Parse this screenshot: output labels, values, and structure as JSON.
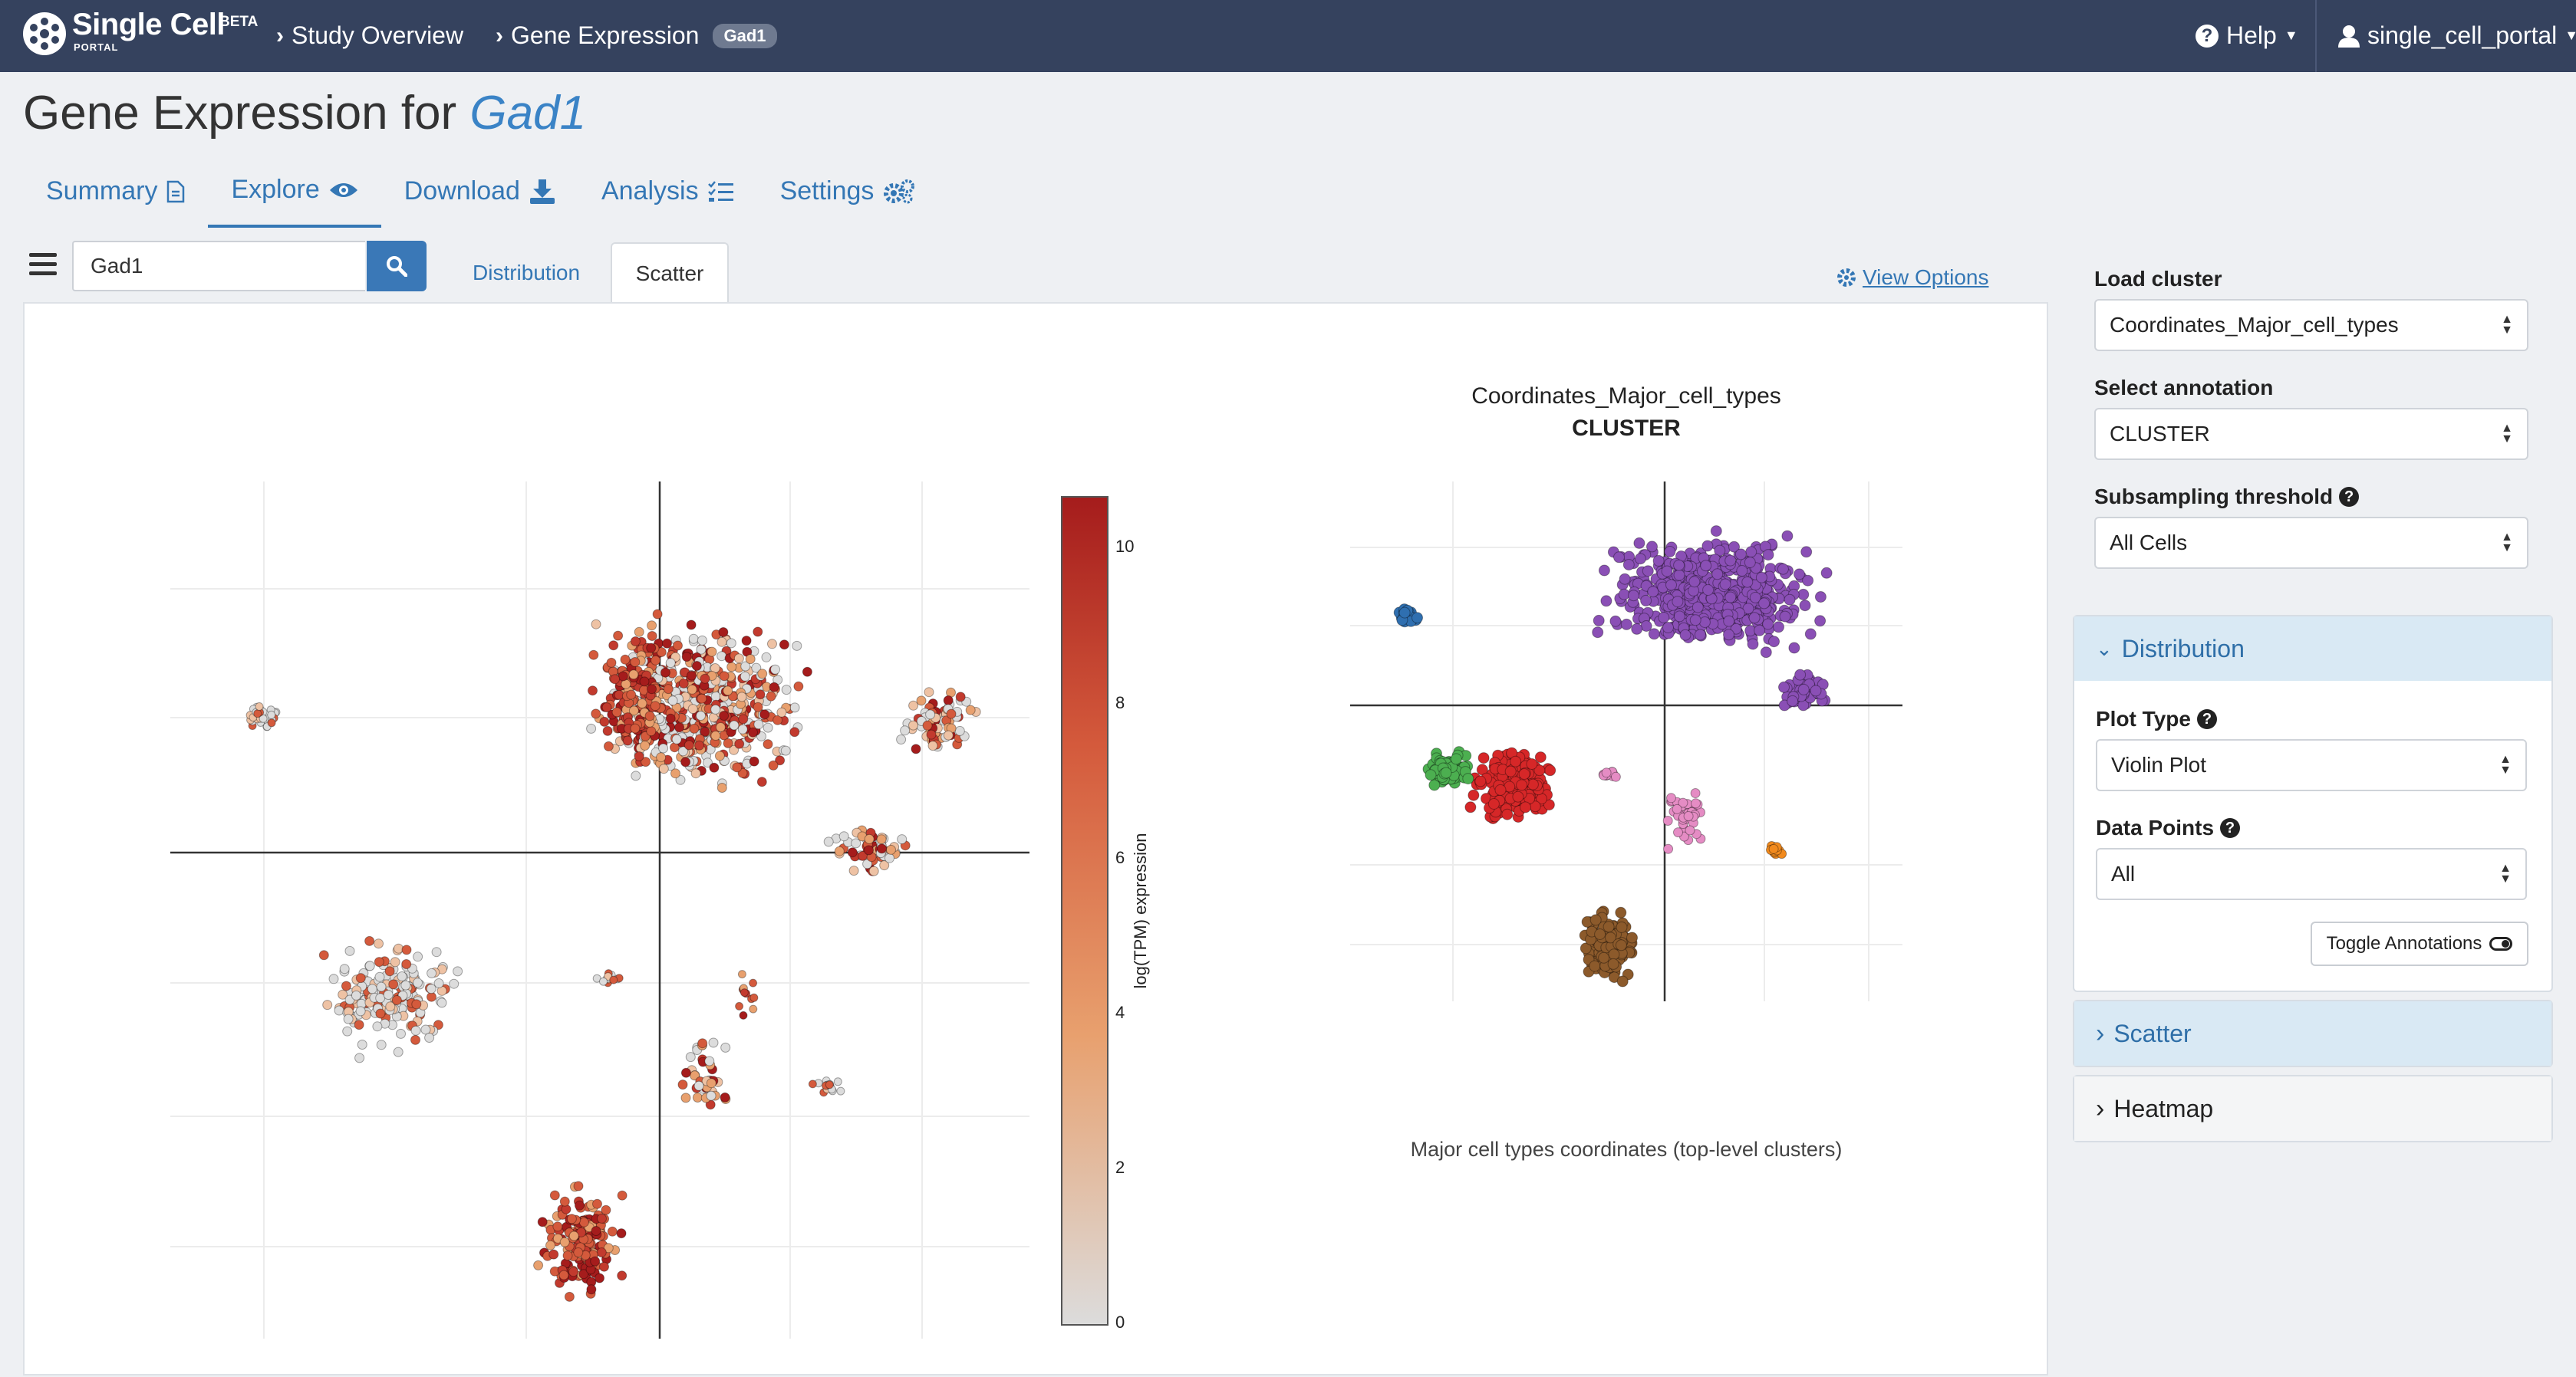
{
  "navbar": {
    "brand": "Single Cell",
    "beta": "BETA",
    "portal": "PORTAL",
    "crumbs": [
      "Study Overview",
      "Gene Expression"
    ],
    "gene_badge": "Gad1",
    "help": "Help",
    "user": "single_cell_portal"
  },
  "page": {
    "title_prefix": "Gene Expression for",
    "gene": "Gad1"
  },
  "tabs": [
    {
      "label": "Summary",
      "icon": "document-icon",
      "active": false
    },
    {
      "label": "Explore",
      "icon": "eye-icon",
      "active": true
    },
    {
      "label": "Download",
      "icon": "download-icon",
      "active": false
    },
    {
      "label": "Analysis",
      "icon": "list-check-icon",
      "active": false
    },
    {
      "label": "Settings",
      "icon": "gears-icon",
      "active": false
    }
  ],
  "search": {
    "value": "Gad1"
  },
  "subtabs": {
    "distribution": "Distribution",
    "scatter": "Scatter",
    "active": "Scatter"
  },
  "view_options": "View Options",
  "plots": {
    "right_title": "Coordinates_Major_cell_types",
    "right_subtitle": "CLUSTER",
    "right_caption": "Major cell types coordinates (top-level clusters)",
    "colorbar_label": "log(TPM) expression",
    "colorbar_ticks": [
      "10",
      "8",
      "6",
      "4",
      "2",
      "0"
    ]
  },
  "sidebar": {
    "load_cluster_label": "Load cluster",
    "load_cluster_value": "Coordinates_Major_cell_types",
    "annotation_label": "Select annotation",
    "annotation_value": "CLUSTER",
    "subsample_label": "Subsampling threshold",
    "subsample_value": "All Cells",
    "distribution": "Distribution",
    "plot_type_label": "Plot Type",
    "plot_type_value": "Violin Plot",
    "data_points_label": "Data Points",
    "data_points_value": "All",
    "toggle_annotations": "Toggle Annotations",
    "scatter": "Scatter",
    "heatmap": "Heatmap"
  },
  "colors": {
    "navbar": "#35425e",
    "link": "#3477b5",
    "expr_high": "#a51c1c",
    "expr_mid": "#e8a06e",
    "expr_low": "#dcdcdc",
    "cluster_purple": "#8a4fb5",
    "cluster_red": "#d62728",
    "cluster_green": "#4caf50",
    "cluster_blue": "#2f6fb0",
    "cluster_brown": "#8c5a2b",
    "cluster_pink": "#e58cc4",
    "cluster_orange": "#f28a1d"
  }
}
